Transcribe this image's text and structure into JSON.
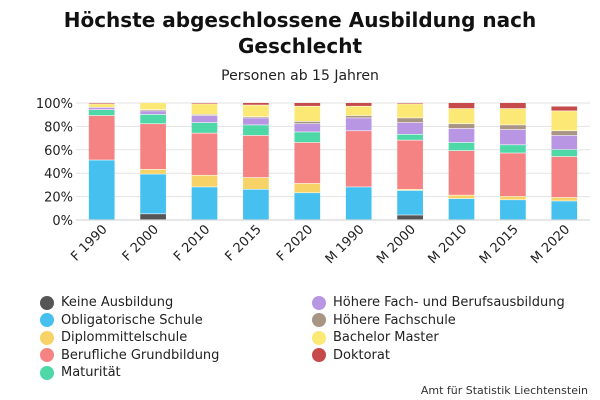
{
  "chart_data": {
    "type": "bar",
    "stacked": true,
    "title": "Höchste abgeschlossene Ausbildung nach Geschlecht",
    "subtitle": "Personen ab 15 Jahren",
    "source": "Amt für Statistik Liechtenstein",
    "categories": [
      "F 1990",
      "F 2000",
      "F 2010",
      "F 2015",
      "F 2020",
      "M 1990",
      "M 2000",
      "M 2010",
      "M 2015",
      "M 2020"
    ],
    "ylim": [
      0,
      100
    ],
    "yticks": [
      "0%",
      "20%",
      "40%",
      "60%",
      "80%",
      "100%"
    ],
    "grid": true,
    "legend_position": "bottom",
    "series": [
      {
        "name": "Keine Ausbildung",
        "color": "#555555",
        "values": [
          0,
          5,
          0,
          0,
          0,
          0,
          4,
          0,
          0,
          0
        ]
      },
      {
        "name": "Obligatorische Schule",
        "color": "#46c0ee",
        "values": [
          51,
          34,
          28,
          26,
          23,
          28,
          21,
          18,
          17,
          16
        ]
      },
      {
        "name": "Diplommittelschule",
        "color": "#f7d367",
        "values": [
          0,
          4,
          10,
          10,
          8,
          0,
          1,
          3,
          3,
          3
        ]
      },
      {
        "name": "Berufliche Grundbildung",
        "color": "#f58383",
        "values": [
          38,
          39,
          36,
          36,
          35,
          48,
          42,
          38,
          37,
          35
        ]
      },
      {
        "name": "Maturität",
        "color": "#4ed8a8",
        "values": [
          5,
          8,
          9,
          9,
          9,
          0,
          5,
          7,
          7,
          6
        ]
      },
      {
        "name": "Höhere Fach- und Berufsausbildung",
        "color": "#b996e3",
        "values": [
          2,
          3,
          6,
          6,
          7,
          11,
          10,
          12,
          13,
          12
        ]
      },
      {
        "name": "Höhere Fachschule",
        "color": "#a89584",
        "values": [
          0,
          1,
          1,
          1,
          2,
          2,
          4,
          4,
          4,
          4
        ]
      },
      {
        "name": "Bachelor Master",
        "color": "#fbe875",
        "values": [
          3,
          6,
          9,
          10,
          13,
          8,
          12,
          13,
          14,
          17
        ]
      },
      {
        "name": "Doktorat",
        "color": "#c64a4a",
        "values": [
          1,
          0,
          1,
          2,
          3,
          3,
          1,
          5,
          5,
          4
        ]
      }
    ],
    "legend_order": [
      "Keine Ausbildung",
      "Obligatorische Schule",
      "Diplommittelschule",
      "Berufliche Grundbildung",
      "Maturität",
      "Höhere Fach- und Berufsausbildung",
      "Höhere Fachschule",
      "Bachelor Master",
      "Doktorat"
    ]
  }
}
